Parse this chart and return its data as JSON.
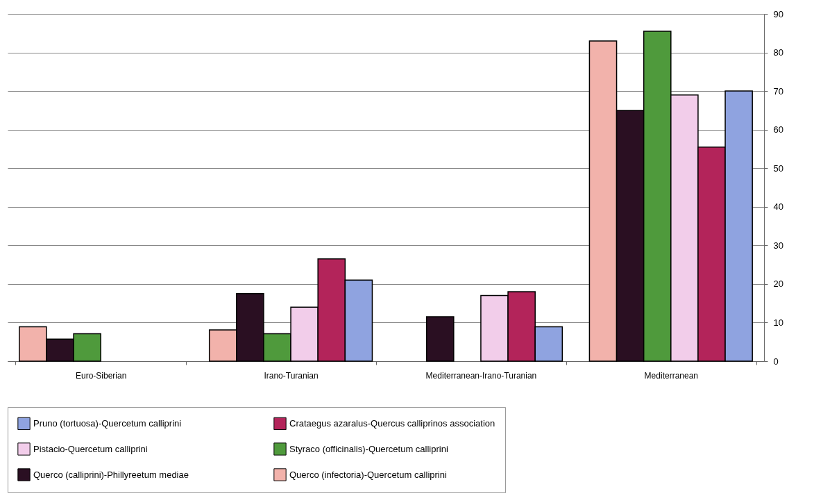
{
  "chart_data": {
    "type": "bar",
    "categories": [
      "Euro-Siberian",
      "Irano-Turanian",
      "Mediterranean-Irano-Turanian",
      "Mediterranean"
    ],
    "series": [
      {
        "name": "Querco (infectoria)-Quercetum calliprini",
        "color": "#f2b2ab",
        "values": [
          8.9,
          8.1,
          null,
          83
        ]
      },
      {
        "name": "Querco (calliprini)-Phillyreetum mediae",
        "color": "#2a0f22",
        "values": [
          5.7,
          17.5,
          11.5,
          65
        ]
      },
      {
        "name": "Styraco (officinalis)-Quercetum calliprini",
        "color": "#4f9a3c",
        "values": [
          7.1,
          7.1,
          null,
          85.5
        ]
      },
      {
        "name": "Pistacio-Quercetum calliprini",
        "color": "#f2cdea",
        "values": [
          null,
          14,
          17,
          69
        ]
      },
      {
        "name": "Crataegus azaralus-Quercus calliprinos association",
        "color": "#b3245a",
        "values": [
          null,
          26.5,
          18,
          55.5
        ]
      },
      {
        "name": "Pruno (tortuosa)-Quercetum calliprini",
        "color": "#8fa3e0",
        "values": [
          null,
          21,
          8.9,
          70
        ]
      }
    ],
    "ylim": [
      0,
      90
    ],
    "yticks": [
      0,
      10,
      20,
      30,
      40,
      50,
      60,
      70,
      80,
      90
    ],
    "grid": "y",
    "legend": "bottom"
  }
}
